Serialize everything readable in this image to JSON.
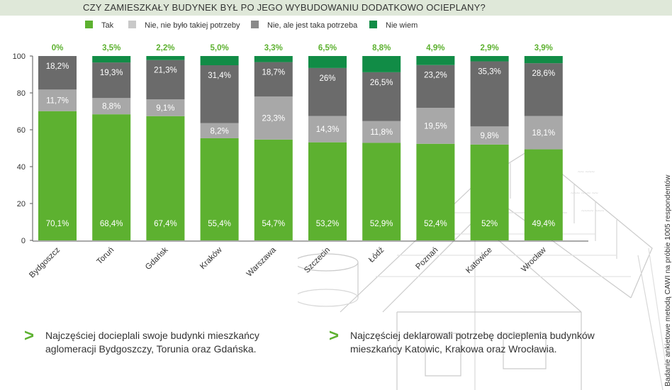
{
  "title": "CZY ZAMIESZKAŁY BUDYNEK BYŁ PO JEGO WYBUDOWANIU DODATKOWO OCIEPLANY?",
  "colors": {
    "tak": "#5db130",
    "nie_nie_bylo": "#a8a8a8",
    "nie_ale_jest": "#6b6b6b",
    "nie_wiem": "#118c46",
    "accent": "#5db130"
  },
  "legend": [
    "Tak",
    "Nie, nie było takiej potrzeby",
    "Nie, ale jest taka potrzeba",
    "Nie wiem"
  ],
  "chart_data": {
    "type": "bar",
    "stacked": true,
    "ylim": [
      0,
      100
    ],
    "yticks": [
      0,
      20,
      40,
      60,
      80,
      100
    ],
    "grid": false,
    "legend_position": "top",
    "categories": [
      "Bydgoszcz",
      "Toruń",
      "Gdańsk",
      "Kraków",
      "Warszawa",
      "Szczecin",
      "Łódź",
      "Poznań",
      "Katowice",
      "Wrocław"
    ],
    "series": [
      {
        "name": "Tak",
        "values": [
          70.1,
          68.4,
          67.4,
          55.4,
          54.7,
          53.2,
          52.9,
          52.4,
          52,
          49.4
        ],
        "labels": [
          "70,1%",
          "68,4%",
          "67,4%",
          "55,4%",
          "54,7%",
          "53,2%",
          "52,9%",
          "52,4%",
          "52%",
          "49,4%"
        ]
      },
      {
        "name": "Nie, nie było takiej potrzeby",
        "values": [
          11.7,
          8.8,
          9.1,
          8.2,
          23.3,
          14.3,
          11.8,
          19.5,
          9.8,
          18.1
        ],
        "labels": [
          "11,7%",
          "8,8%",
          "9,1%",
          "8,2%",
          "23,3%",
          "14,3%",
          "11,8%",
          "19,5%",
          "9,8%",
          "18,1%"
        ]
      },
      {
        "name": "Nie, ale jest taka potrzeba",
        "values": [
          18.2,
          19.3,
          21.3,
          31.4,
          18.7,
          26,
          26.5,
          23.2,
          35.3,
          28.6
        ],
        "labels": [
          "18,2%",
          "19,3%",
          "21,3%",
          "31,4%",
          "18,7%",
          "26%",
          "26,5%",
          "23,2%",
          "35,3%",
          "28,6%"
        ]
      },
      {
        "name": "Nie wiem",
        "values": [
          0,
          3.5,
          2.2,
          5.0,
          3.3,
          6.5,
          8.8,
          4.9,
          2.9,
          3.9
        ],
        "labels": [
          "0%",
          "3,5%",
          "2,2%",
          "5,0%",
          "3,3%",
          "6,5%",
          "8,8%",
          "4,9%",
          "2,9%",
          "3,9%"
        ]
      }
    ]
  },
  "notes": [
    "Najczęściej docieplali swoje budynki mieszkańcy aglomeracji Bydgoszczy, Torunia oraz Gdańska.",
    "Najczęściej deklarowali potrzebę docieplenia budynków mieszkańcy Katowic, Krakowa oraz Wrocławia."
  ],
  "bullet_glyph": ">",
  "side_note": "Badanie ankietowe metodą CAWI na próbie 1005 respondentów"
}
